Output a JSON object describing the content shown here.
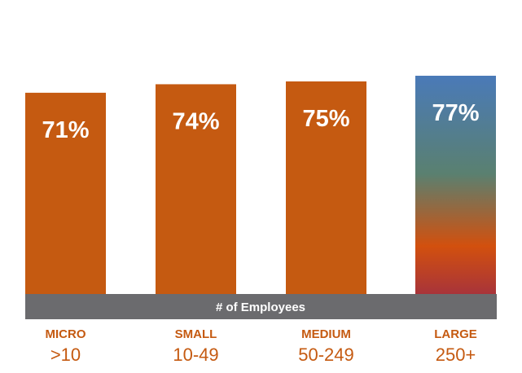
{
  "chart_data": {
    "type": "bar",
    "xlabel": "# of Employees",
    "categories": [
      "MICRO",
      "SMALL",
      "MEDIUM",
      "LARGE"
    ],
    "category_ranges": [
      ">10",
      "10-49",
      "50-249",
      "250+"
    ],
    "values": [
      71,
      74,
      75,
      77
    ],
    "value_labels": [
      "71%",
      "74%",
      "75%",
      "77%"
    ],
    "value_suffix": "%",
    "ylim": [
      0,
      77
    ],
    "grid": false,
    "legend": "none"
  },
  "colors": {
    "bar": "#c55a11",
    "highlight_top": "#4a7ab8",
    "highlight_mid": "#5a8070",
    "highlight_orange": "#d2500e",
    "highlight_bottom": "#a8343a",
    "band": "#6b6b6e",
    "category_text": "#c55a11"
  }
}
